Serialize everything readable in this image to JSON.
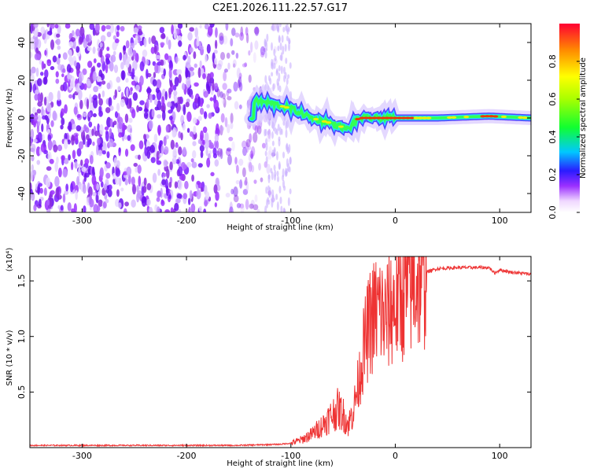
{
  "title": "C2E1.2026.111.22.57.G17",
  "chart_data": [
    {
      "type": "heatmap",
      "name": "spectrogram",
      "xlabel": "Height of straight line (km)",
      "ylabel": "Frequency (Hz)",
      "xlim": [
        -350,
        130
      ],
      "ylim": [
        -50,
        50
      ],
      "xticks": [
        -300,
        -200,
        -100,
        0,
        100
      ],
      "yticks": [
        -40,
        -20,
        0,
        20,
        40
      ],
      "colorbar": {
        "label": "Normalized spectral amplitude",
        "range": [
          0.0,
          1.0
        ],
        "ticks": [
          0.0,
          0.2,
          0.4,
          0.6,
          0.8
        ]
      },
      "ridge": {
        "description_points_x": [
          -135,
          -120,
          -100,
          -80,
          -60,
          -45,
          -35,
          -20,
          0,
          40,
          90,
          130
        ],
        "description_points_f": [
          9,
          8,
          5,
          0,
          -3,
          -6,
          0,
          0,
          0,
          0,
          1,
          0
        ]
      }
    },
    {
      "type": "line",
      "name": "snr",
      "xlabel": "Height of straight line (km)",
      "ylabel": "SNR (10 * v/v)",
      "yscale_note": "(x10⁴)",
      "xlim": [
        -350,
        130
      ],
      "ylim": [
        0,
        1.72
      ],
      "xticks": [
        -300,
        -200,
        -100,
        0,
        100
      ],
      "yticks": [
        0.5,
        1.0,
        1.5
      ],
      "ytick_labels": [
        "0.5",
        "1.0",
        "1.5"
      ],
      "color": "#ee3333",
      "series": [
        {
          "name": "SNR",
          "x": [
            -350,
            -300,
            -250,
            -200,
            -150,
            -110,
            -100,
            -90,
            -80,
            -70,
            -60,
            -55,
            -50,
            -45,
            -40,
            -35,
            -30,
            -25,
            -20,
            -15,
            -10,
            -5,
            0,
            5,
            10,
            20,
            30,
            40,
            60,
            80,
            90,
            95,
            100,
            110,
            120,
            130
          ],
          "y": [
            0.02,
            0.02,
            0.02,
            0.02,
            0.02,
            0.03,
            0.04,
            0.07,
            0.12,
            0.2,
            0.3,
            0.35,
            0.3,
            0.2,
            0.35,
            0.6,
            0.9,
            1.1,
            1.2,
            1.25,
            1.15,
            1.25,
            1.3,
            1.35,
            1.4,
            1.5,
            1.58,
            1.61,
            1.62,
            1.62,
            1.62,
            1.57,
            1.6,
            1.58,
            1.57,
            1.56
          ]
        }
      ]
    }
  ]
}
